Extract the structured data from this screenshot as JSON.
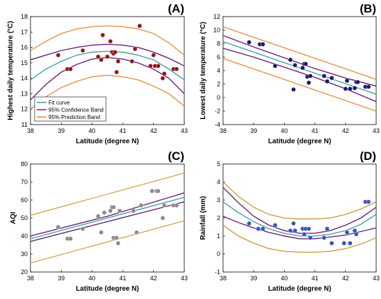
{
  "colors": {
    "fit": "#3a9a9a",
    "confidence": "#6a1f7a",
    "prediction_A": "#e8893a",
    "prediction_B": "#e8893a",
    "prediction_C": "#d4a24a",
    "prediction_D": "#c8963a",
    "marker_A": "#8b1a1a",
    "marker_B": "#1a1a6b",
    "marker_C": "#8c8c8c",
    "marker_D": "#3a55b5"
  },
  "legend": {
    "fit": "Fit curve",
    "confidence": "95% Confidence Band",
    "prediction": "95% Prediction Band"
  },
  "chart_data": [
    {
      "id": "A",
      "panel_label": "(A)",
      "type": "scatter",
      "xlabel": "Latitude (degree N)",
      "ylabel": "Highest daily temperature (°C)",
      "xlim": [
        38,
        43
      ],
      "ylim": [
        11,
        18
      ],
      "xticks": [
        "38",
        "39",
        "40",
        "41",
        "42",
        "43"
      ],
      "yticks": [
        "11",
        "12",
        "13",
        "14",
        "15",
        "16",
        "17",
        "18"
      ],
      "points": [
        [
          38.9,
          15.5
        ],
        [
          39.2,
          14.6
        ],
        [
          39.3,
          14.6
        ],
        [
          39.7,
          15.8
        ],
        [
          40.2,
          15.4
        ],
        [
          40.3,
          15.2
        ],
        [
          40.35,
          16.8
        ],
        [
          40.5,
          15.4
        ],
        [
          40.6,
          16.4
        ],
        [
          40.65,
          15.7
        ],
        [
          40.7,
          15.6
        ],
        [
          40.75,
          15.7
        ],
        [
          40.8,
          14.4
        ],
        [
          40.85,
          15.1
        ],
        [
          41.3,
          15.1
        ],
        [
          41.4,
          15.9
        ],
        [
          41.55,
          17.4
        ],
        [
          41.9,
          14.8
        ],
        [
          42.0,
          15.5
        ],
        [
          42.05,
          14.8
        ],
        [
          42.15,
          14.8
        ],
        [
          42.3,
          14.0
        ],
        [
          42.35,
          14.3
        ],
        [
          42.65,
          14.6
        ],
        [
          42.75,
          14.6
        ]
      ],
      "fit": {
        "x": [
          38,
          38.5,
          39,
          39.5,
          40,
          40.5,
          41,
          41.5,
          42,
          42.5,
          43
        ],
        "y": [
          13.9,
          14.6,
          15.1,
          15.5,
          15.7,
          15.75,
          15.7,
          15.5,
          15.2,
          14.6,
          13.9
        ]
      },
      "confidence": [
        {
          "x": [
            38,
            38.5,
            39,
            39.5,
            40,
            40.5,
            41,
            41.5,
            42,
            42.5,
            43
          ],
          "y": [
            15.2,
            15.5,
            15.8,
            16.0,
            16.15,
            16.2,
            16.15,
            16.0,
            15.7,
            15.3,
            14.8
          ]
        },
        {
          "x": [
            38,
            38.5,
            39,
            39.5,
            40,
            40.5,
            41,
            41.5,
            42,
            42.5,
            43
          ],
          "y": [
            12.6,
            13.6,
            14.4,
            14.9,
            15.25,
            15.35,
            15.25,
            15.0,
            14.6,
            14.0,
            13.0
          ]
        }
      ],
      "prediction": [
        {
          "x": [
            38,
            38.5,
            39,
            39.5,
            40,
            40.5,
            41,
            41.5,
            42,
            42.5,
            43
          ],
          "y": [
            15.8,
            16.4,
            16.9,
            17.2,
            17.35,
            17.4,
            17.35,
            17.2,
            16.9,
            16.3,
            15.5
          ]
        },
        {
          "x": [
            38,
            38.5,
            39,
            39.5,
            40,
            40.5,
            41,
            41.5,
            42,
            42.5,
            43
          ],
          "y": [
            12.0,
            12.8,
            13.4,
            13.8,
            14.1,
            14.2,
            14.1,
            13.9,
            13.5,
            13.0,
            12.2
          ]
        }
      ]
    },
    {
      "id": "B",
      "panel_label": "(B)",
      "type": "scatter",
      "xlabel": "Latitude (degree N)",
      "ylabel": "Lowest daily temperature (°C)",
      "xlim": [
        38,
        43
      ],
      "ylim": [
        -4,
        12
      ],
      "xticks": [
        "38",
        "39",
        "40",
        "41",
        "42",
        "43"
      ],
      "yticks": [
        "-4",
        "-2",
        "0",
        "2",
        "4",
        "6",
        "8",
        "10",
        "12"
      ],
      "points": [
        [
          38.85,
          8.2
        ],
        [
          39.2,
          7.9
        ],
        [
          39.3,
          7.9
        ],
        [
          39.7,
          4.7
        ],
        [
          40.2,
          5.6
        ],
        [
          40.3,
          1.2
        ],
        [
          40.35,
          4.8
        ],
        [
          40.6,
          4.4
        ],
        [
          40.65,
          5.0
        ],
        [
          40.7,
          5.0
        ],
        [
          40.75,
          3.1
        ],
        [
          40.8,
          2.2
        ],
        [
          40.85,
          3.2
        ],
        [
          41.3,
          3.2
        ],
        [
          41.4,
          2.4
        ],
        [
          41.55,
          2.9
        ],
        [
          42.0,
          1.3
        ],
        [
          42.05,
          2.5
        ],
        [
          42.15,
          1.3
        ],
        [
          42.3,
          1.4
        ],
        [
          42.35,
          2.3
        ],
        [
          42.4,
          2.3
        ],
        [
          42.65,
          1.6
        ],
        [
          42.75,
          1.6
        ]
      ],
      "fit": {
        "x": [
          38,
          43
        ],
        "y": [
          8.3,
          0.5
        ]
      },
      "confidence": [
        {
          "x": [
            38,
            39,
            40,
            41,
            42,
            43
          ],
          "y": [
            9.2,
            7.5,
            5.9,
            4.3,
            2.9,
            1.7
          ]
        },
        {
          "x": [
            38,
            39,
            40,
            41,
            42,
            43
          ],
          "y": [
            7.3,
            6.0,
            4.5,
            3.0,
            1.3,
            -0.6
          ]
        }
      ],
      "prediction": [
        {
          "x": [
            38,
            43
          ],
          "y": [
            10.5,
            2.7
          ]
        },
        {
          "x": [
            38,
            43
          ],
          "y": [
            5.8,
            -2.0
          ]
        }
      ]
    },
    {
      "id": "C",
      "panel_label": "(C)",
      "type": "scatter",
      "xlabel": "Latitude (degree N)",
      "ylabel": "AQI",
      "xlim": [
        38,
        43
      ],
      "ylim": [
        20,
        80
      ],
      "xticks": [
        "38",
        "39",
        "40",
        "41",
        "42",
        "43"
      ],
      "yticks": [
        "20",
        "30",
        "40",
        "50",
        "60",
        "70",
        "80"
      ],
      "points": [
        [
          38.9,
          45
        ],
        [
          39.2,
          38.5
        ],
        [
          39.3,
          38.5
        ],
        [
          39.7,
          44
        ],
        [
          40.2,
          51
        ],
        [
          40.3,
          42
        ],
        [
          40.4,
          53
        ],
        [
          40.6,
          54
        ],
        [
          40.65,
          56
        ],
        [
          40.7,
          56
        ],
        [
          40.7,
          39
        ],
        [
          40.8,
          39
        ],
        [
          40.85,
          36
        ],
        [
          40.9,
          54
        ],
        [
          41.35,
          54
        ],
        [
          41.45,
          42
        ],
        [
          41.6,
          57
        ],
        [
          41.95,
          65
        ],
        [
          42.1,
          65
        ],
        [
          42.15,
          65
        ],
        [
          42.3,
          50
        ],
        [
          42.35,
          57
        ],
        [
          42.65,
          57
        ],
        [
          42.75,
          57
        ]
      ],
      "fit": {
        "x": [
          38,
          43
        ],
        "y": [
          38.5,
          61.5
        ]
      },
      "confidence": [
        {
          "x": [
            38,
            40.5,
            43
          ],
          "y": [
            40.0,
            51.0,
            64.0
          ]
        },
        {
          "x": [
            38,
            40.5,
            43
          ],
          "y": [
            37.0,
            48.0,
            59.0
          ]
        }
      ],
      "prediction": [
        {
          "x": [
            38,
            43
          ],
          "y": [
            51.5,
            75.0
          ]
        },
        {
          "x": [
            38,
            43
          ],
          "y": [
            25.0,
            48.5
          ]
        }
      ]
    },
    {
      "id": "D",
      "panel_label": "(D)",
      "type": "scatter",
      "xlabel": "Latitude (degree N)",
      "ylabel": "Rainfall (mm)",
      "xlim": [
        38,
        43
      ],
      "ylim": [
        -1,
        5
      ],
      "xticks": [
        "38",
        "39",
        "40",
        "41",
        "42",
        "43"
      ],
      "yticks": [
        "-1",
        "0",
        "1",
        "2",
        "3",
        "4",
        "5"
      ],
      "points": [
        [
          38.85,
          1.7
        ],
        [
          39.15,
          1.4
        ],
        [
          39.3,
          1.4
        ],
        [
          39.7,
          1.6
        ],
        [
          40.2,
          1.3
        ],
        [
          40.3,
          1.7
        ],
        [
          40.35,
          1.3
        ],
        [
          40.6,
          1.4
        ],
        [
          40.65,
          1.1
        ],
        [
          40.7,
          1.4
        ],
        [
          40.8,
          1.4
        ],
        [
          40.85,
          0.9
        ],
        [
          41.3,
          0.9
        ],
        [
          41.4,
          1.4
        ],
        [
          41.55,
          0.6
        ],
        [
          41.95,
          0.6
        ],
        [
          42.05,
          1.2
        ],
        [
          42.15,
          0.6
        ],
        [
          42.3,
          1.3
        ],
        [
          42.35,
          1.1
        ],
        [
          42.65,
          2.9
        ],
        [
          42.75,
          2.9
        ]
      ],
      "fit": {
        "x": [
          38,
          38.5,
          39,
          39.5,
          40,
          40.5,
          41,
          41.5,
          42,
          42.5,
          43
        ],
        "y": [
          2.9,
          2.3,
          1.8,
          1.4,
          1.15,
          1.0,
          1.0,
          1.1,
          1.3,
          1.65,
          2.2
        ]
      },
      "confidence": [
        {
          "x": [
            38,
            38.5,
            39,
            39.5,
            40,
            40.5,
            41,
            41.5,
            42,
            42.5,
            43
          ],
          "y": [
            3.7,
            2.85,
            2.1,
            1.6,
            1.3,
            1.15,
            1.15,
            1.3,
            1.6,
            2.0,
            2.6
          ]
        },
        {
          "x": [
            38,
            38.5,
            39,
            39.5,
            40,
            40.5,
            41,
            41.5,
            42,
            42.5,
            43
          ],
          "y": [
            2.1,
            1.75,
            1.45,
            1.2,
            1.0,
            0.85,
            0.85,
            0.95,
            1.05,
            1.25,
            1.45
          ]
        }
      ],
      "prediction": [
        {
          "x": [
            38,
            38.5,
            39,
            39.5,
            40,
            40.5,
            41,
            41.5,
            42,
            42.5,
            43
          ],
          "y": [
            4.0,
            3.2,
            2.6,
            2.2,
            2.0,
            1.95,
            1.95,
            2.0,
            2.2,
            2.5,
            2.9
          ]
        },
        {
          "x": [
            38,
            38.5,
            39,
            39.5,
            40,
            40.5,
            41,
            41.5,
            42,
            42.5,
            43
          ],
          "y": [
            1.6,
            1.0,
            0.6,
            0.3,
            0.15,
            0.1,
            0.1,
            0.15,
            0.3,
            0.55,
            0.9
          ]
        }
      ]
    }
  ]
}
